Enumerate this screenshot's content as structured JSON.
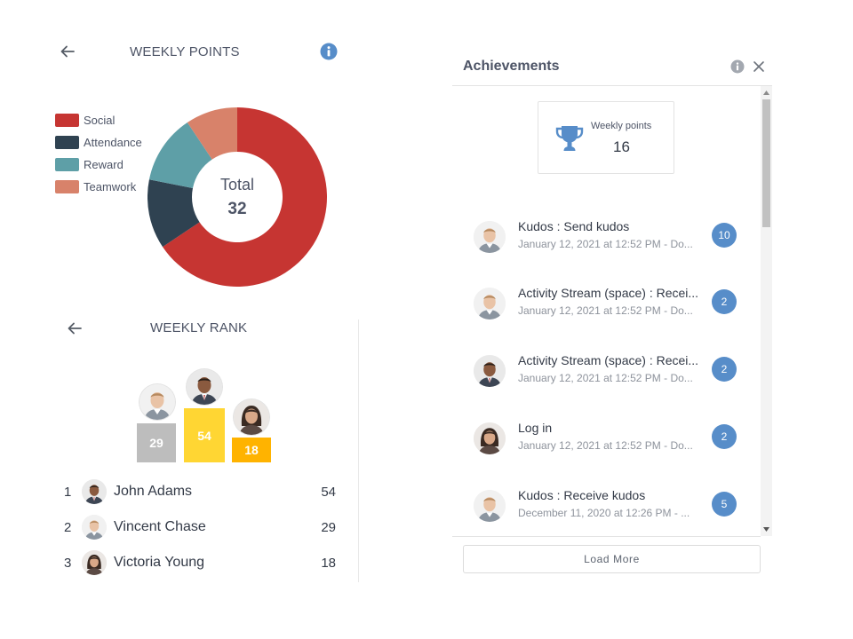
{
  "weekly_points": {
    "title": "WEEKLY POINTS",
    "back_icon": "arrow-left-icon",
    "info_icon": "info-icon",
    "legend": [
      {
        "label": "Social",
        "color": "#c63532"
      },
      {
        "label": "Attendance",
        "color": "#2f4251"
      },
      {
        "label": "Reward",
        "color": "#5e9fa7"
      },
      {
        "label": "Teamwork",
        "color": "#d8826a"
      }
    ],
    "total_label": "Total",
    "total_value": "32",
    "donut_points": [
      21,
      4,
      4,
      3
    ]
  },
  "weekly_rank": {
    "title": "WEEKLY RANK",
    "back_icon": "arrow-left-icon",
    "podium": [
      {
        "score": "29",
        "color": "#bdbdbd"
      },
      {
        "score": "54",
        "color": "#ffd633"
      },
      {
        "score": "18",
        "color": "#ffb300"
      }
    ],
    "rows": [
      {
        "rank": "1",
        "name": "John Adams",
        "score": "54"
      },
      {
        "rank": "2",
        "name": "Vincent Chase",
        "score": "29"
      },
      {
        "rank": "3",
        "name": "Victoria Young",
        "score": "18"
      }
    ]
  },
  "achievements": {
    "title": "Achievements",
    "info_icon": "info-icon",
    "close_icon": "close-icon",
    "card": {
      "label": "Weekly points",
      "value": "16",
      "icon": "trophy-icon"
    },
    "items": [
      {
        "title": "Kudos : Send kudos",
        "date": "January 12, 2021 at 12:52 PM - Do...",
        "points": "10"
      },
      {
        "title": "Activity Stream (space) : Recei...",
        "date": "January 12, 2021 at 12:52 PM - Do...",
        "points": "2"
      },
      {
        "title": "Activity Stream (space) : Recei...",
        "date": "January 12, 2021 at 12:52 PM - Do...",
        "points": "2"
      },
      {
        "title": "Log in",
        "date": "January 12, 2021 at 12:52 PM - Do...",
        "points": "2"
      },
      {
        "title": "Kudos : Receive kudos",
        "date": "December 11, 2020 at 12:26 PM - ...",
        "points": "5"
      }
    ],
    "load_more_label": "Load More",
    "accent_color": "#578dc9"
  }
}
